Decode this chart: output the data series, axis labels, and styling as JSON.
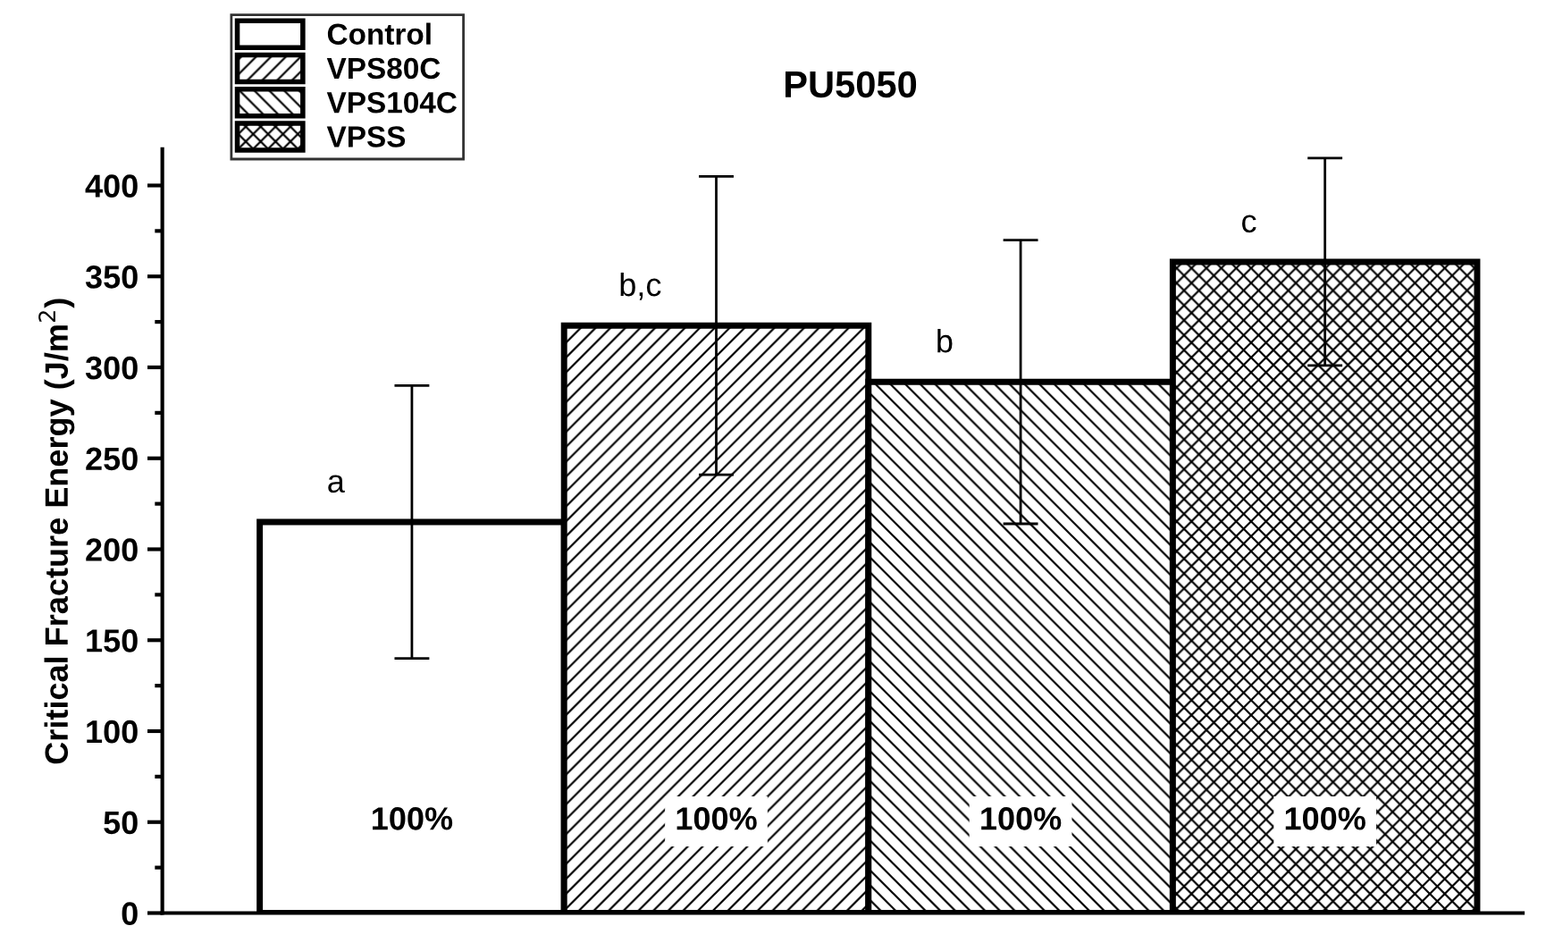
{
  "chart_data": {
    "type": "bar",
    "title": "PU5050",
    "ylabel": "Critical Fracture Energy (J/m$^{2}$)",
    "categories": [
      null,
      null,
      null,
      null
    ],
    "series": [
      {
        "name": "Control",
        "color": "#ffffff",
        "values": [
          215,
          null,
          null,
          null
        ],
        "errors": [
          75,
          null,
          null,
          null
        ]
      },
      {
        "name": "VPS80C",
        "color": "#000000",
        "values": [
          null,
          323,
          null,
          null
        ],
        "errors": [
          null,
          82,
          null,
          null
        ]
      },
      {
        "name": "VPS104C",
        "color": "#000000",
        "values": [
          null,
          null,
          292,
          null
        ],
        "errors": [
          null,
          null,
          78,
          null
        ]
      },
      {
        "name": "VPSS",
        "color": "#000000",
        "values": [
          null,
          null,
          null,
          358
        ],
        "errors": [
          null,
          null,
          null,
          57
        ]
      }
    ],
    "annotations": [
      "a",
      "b,c",
      "b",
      "c",
      "100%",
      "100%",
      "100%",
      "100%"
    ],
    "ylim": [
      0,
      420
    ],
    "yticks": [
      0,
      50,
      100,
      150,
      200,
      250,
      300,
      350,
      400
    ],
    "tick_labels": "y",
    "grid": false,
    "legend": "top left"
  }
}
